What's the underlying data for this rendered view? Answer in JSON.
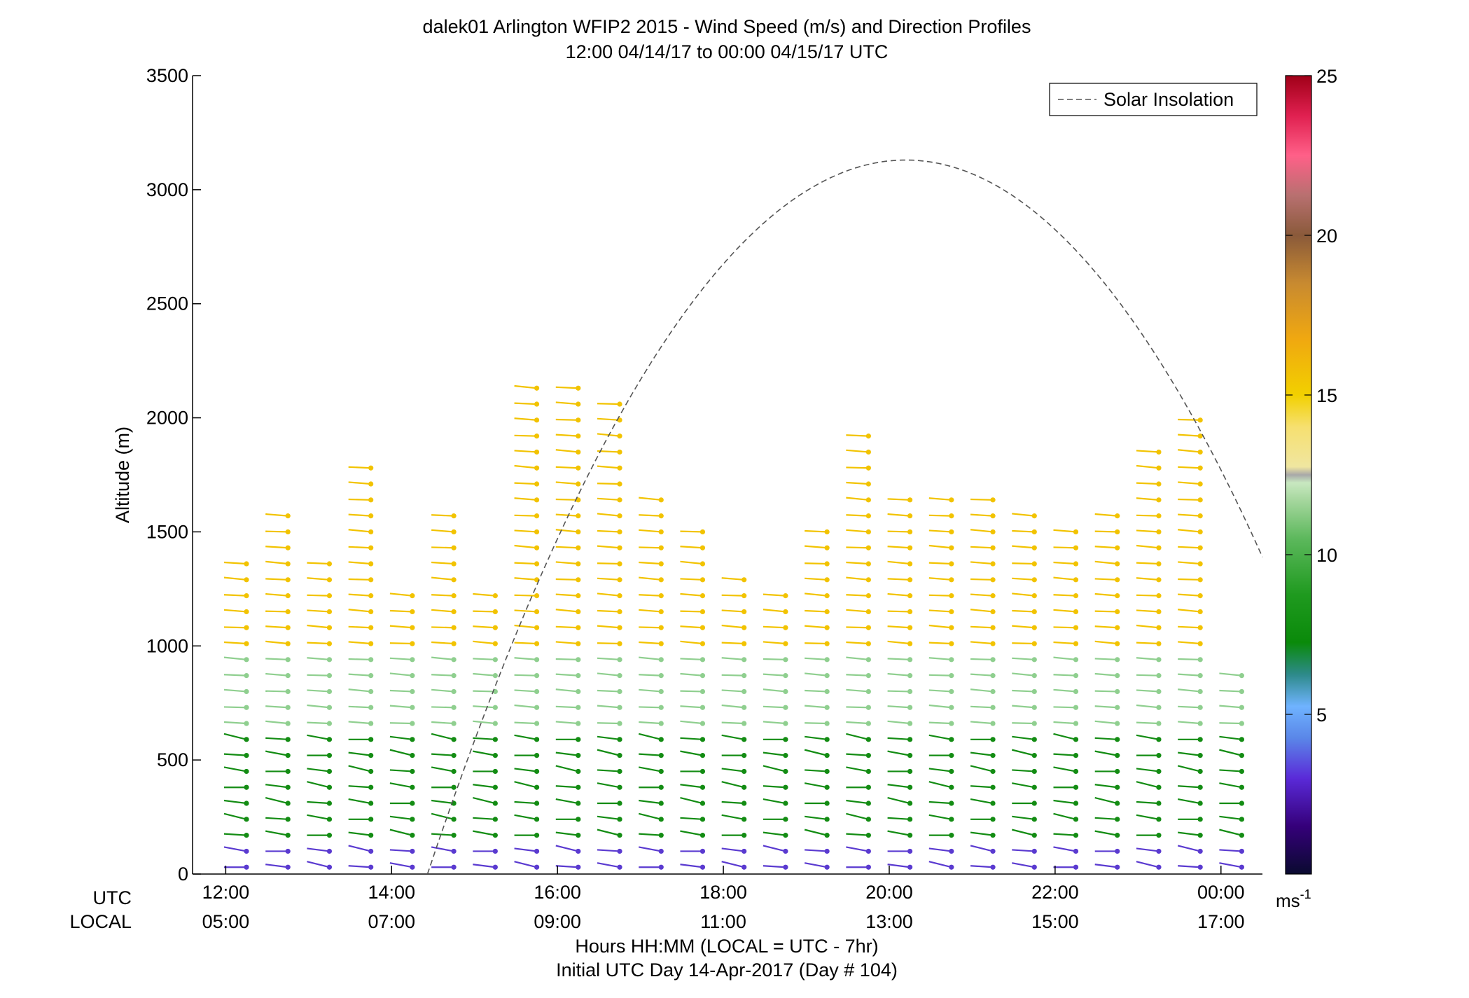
{
  "chart_data": {
    "type": "wind-barb-profile",
    "title": "dalek01 Arlington WFIP2 2015 - Wind Speed (m/s) and Direction Profiles",
    "subtitle": "12:00 04/14/17 to 00:00 04/15/17  UTC",
    "ylabel": "Altitude (m)",
    "xlabel": "Hours HH:MM  (LOCAL = UTC - 7hr)",
    "xlabel2": "Initial UTC Day 14-Apr-2017 (Day # 104)",
    "x_row_labels": [
      "UTC",
      "LOCAL"
    ],
    "xlim": [
      11.6,
      24.5
    ],
    "ylim": [
      0,
      3500
    ],
    "y_ticks": [
      0,
      500,
      1000,
      1500,
      2000,
      2500,
      3000,
      3500
    ],
    "x_ticks": [
      {
        "utc_hour": 12,
        "utc": "12:00",
        "local": "05:00"
      },
      {
        "utc_hour": 14,
        "utc": "14:00",
        "local": "07:00"
      },
      {
        "utc_hour": 16,
        "utc": "16:00",
        "local": "09:00"
      },
      {
        "utc_hour": 18,
        "utc": "18:00",
        "local": "11:00"
      },
      {
        "utc_hour": 20,
        "utc": "20:00",
        "local": "13:00"
      },
      {
        "utc_hour": 22,
        "utc": "22:00",
        "local": "15:00"
      },
      {
        "utc_hour": 24,
        "utc": "00:00",
        "local": "17:00"
      }
    ],
    "legend": {
      "label": "Solar Insolation",
      "position": "top-right"
    },
    "solar_insolation": {
      "peak_hour": 20.2,
      "peak_altitude": 3130,
      "end_hour": 24.5,
      "end_altitude": 1390,
      "start_hour": 13.85,
      "start_altitude": 0
    },
    "colorbar": {
      "min": 0,
      "max": 25,
      "ticks": [
        5,
        10,
        15,
        20,
        25
      ],
      "unit_label": "ms",
      "unit_exponent": "-1"
    },
    "profiles": [
      {
        "hour": 12.25,
        "top": 1410
      },
      {
        "hour": 12.75,
        "top": 1620
      },
      {
        "hour": 13.25,
        "top": 1410
      },
      {
        "hour": 13.75,
        "top": 1840
      },
      {
        "hour": 14.25,
        "top": 1270
      },
      {
        "hour": 14.75,
        "top": 1620
      },
      {
        "hour": 15.25,
        "top": 1270
      },
      {
        "hour": 15.75,
        "top": 2190
      },
      {
        "hour": 16.25,
        "top": 2190
      },
      {
        "hour": 16.75,
        "top": 2120
      },
      {
        "hour": 17.25,
        "top": 1700
      },
      {
        "hour": 17.75,
        "top": 1560
      },
      {
        "hour": 18.25,
        "top": 1340
      },
      {
        "hour": 18.75,
        "top": 1270
      },
      {
        "hour": 19.25,
        "top": 1560
      },
      {
        "hour": 19.75,
        "top": 1980
      },
      {
        "hour": 20.25,
        "top": 1700
      },
      {
        "hour": 20.75,
        "top": 1700
      },
      {
        "hour": 21.25,
        "top": 1700
      },
      {
        "hour": 21.75,
        "top": 1620
      },
      {
        "hour": 22.25,
        "top": 1560
      },
      {
        "hour": 22.75,
        "top": 1620
      },
      {
        "hour": 23.25,
        "top": 1910
      },
      {
        "hour": 23.75,
        "top": 2050
      },
      {
        "hour": 24.25,
        "top": 900
      }
    ],
    "speed_by_altitude": [
      {
        "max_altitude": 100,
        "speed": 3.5
      },
      {
        "max_altitude": 600,
        "speed": 8
      },
      {
        "max_altitude": 1000,
        "speed": 11
      },
      {
        "max_altitude": 3500,
        "speed": 14.5
      }
    ],
    "level_spacing_m": 70
  }
}
